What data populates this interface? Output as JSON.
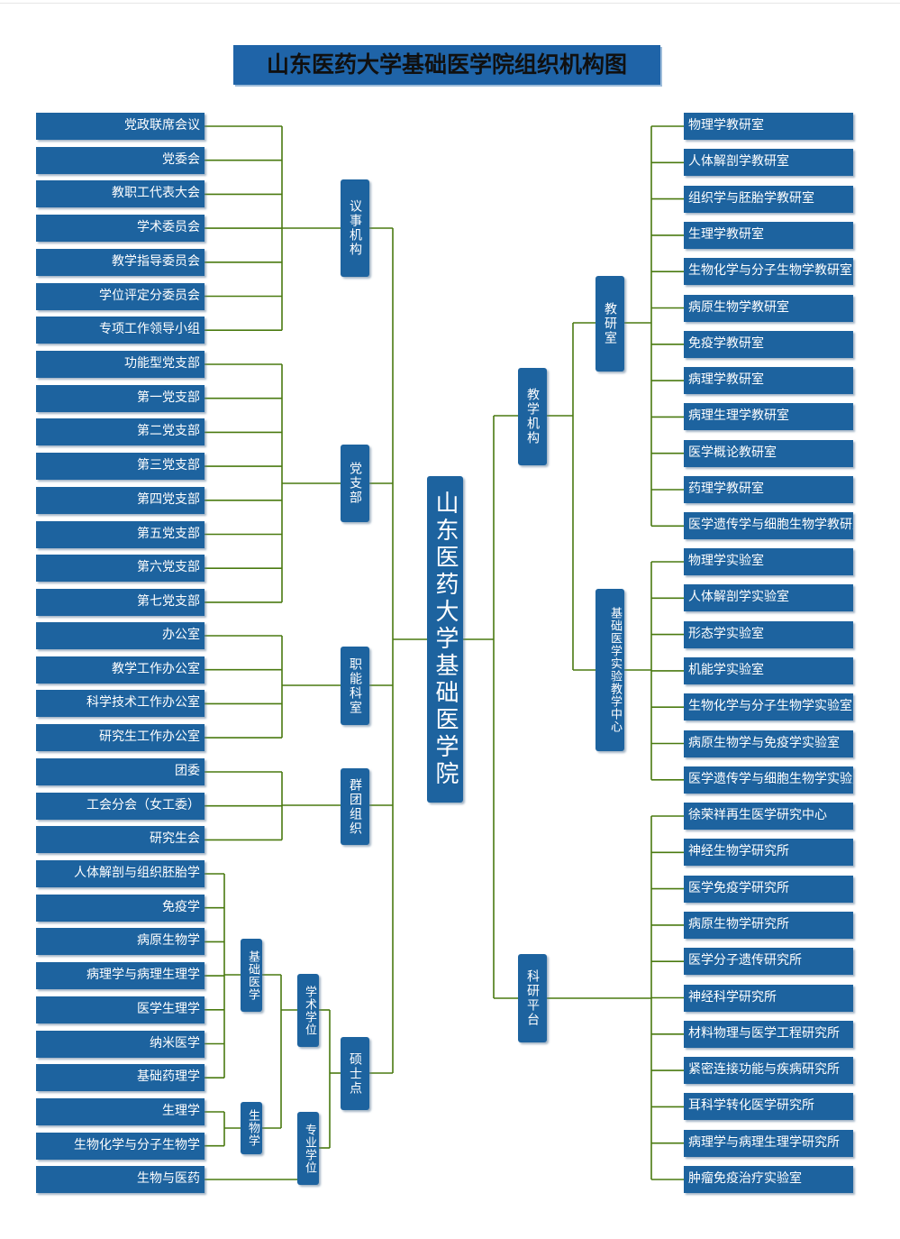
{
  "title": "山东医药大学基础医学院组织机构图",
  "colors": {
    "box": "#1d639f",
    "title_bg": "#1f64a8",
    "line": "#4a7a10",
    "text": "#ffffff"
  },
  "center": "山东医药大学基础医学院",
  "left": {
    "yishi": {
      "label": "议事机构",
      "items": [
        "党政联席会议",
        "党委会",
        "教职工代表大会",
        "学术委员会",
        "教学指导委员会",
        "学位评定分委员会",
        "专项工作领导小组"
      ]
    },
    "dangzhibu": {
      "label": "党支部",
      "items": [
        "功能型党支部",
        "第一党支部",
        "第二党支部",
        "第三党支部",
        "第四党支部",
        "第五党支部",
        "第六党支部",
        "第七党支部"
      ]
    },
    "zhineng": {
      "label": "职能科室",
      "items": [
        "办公室",
        "教学工作办公室",
        "科学技术工作办公室",
        "研究生工作办公室"
      ]
    },
    "quntuan": {
      "label": "群团组织",
      "items": [
        "团委",
        "工会分会（女工委）",
        "研究生会"
      ]
    },
    "shuoshi": {
      "label": "硕士点",
      "xueshu": {
        "label": "学术学位",
        "jichu": {
          "label": "基础医学",
          "items": [
            "人体解剖与组织胚胎学",
            "免疫学",
            "病原生物学",
            "病理学与病理生理学",
            "医学生理学",
            "纳米医学",
            "基础药理学"
          ]
        },
        "shengwu": {
          "label": "生物学",
          "items": [
            "生理学",
            "生物化学与分子生物学"
          ]
        }
      },
      "zhuanye": {
        "label": "专业学位",
        "items": [
          "生物与医药"
        ]
      }
    }
  },
  "right": {
    "jiaoxue": {
      "label": "教学机构",
      "jiaoyanshi": {
        "label": "教研室",
        "items": [
          "物理学教研室",
          "人体解剖学教研室",
          "组织学与胚胎学教研室",
          "生理学教研室",
          "生物化学与分子生物学教研室",
          "病原生物学教研室",
          "免疫学教研室",
          "病理学教研室",
          "病理生理学教研室",
          "医学概论教研室",
          "药理学教研室",
          "医学遗传学与细胞生物学教研室"
        ]
      },
      "shiyan": {
        "label": "基础医学实验教学中心",
        "items": [
          "物理学实验室",
          "人体解剖学实验室",
          "形态学实验室",
          "机能学实验室",
          "生物化学与分子生物学实验室",
          "病原生物学与免疫学实验室",
          "医学遗传学与细胞生物学实验室"
        ]
      }
    },
    "keyan": {
      "label": "科研平台",
      "items": [
        "徐荣祥再生医学研究中心",
        "神经生物学研究所",
        "医学免疫学研究所",
        "病原生物学研究所",
        "医学分子遗传研究所",
        "神经科学研究所",
        "材料物理与医学工程研究所",
        "紧密连接功能与疾病研究所",
        "耳科学转化医学研究所",
        "病理学与病理生理学研究所",
        "肿瘤免疫治疗实验室"
      ]
    }
  }
}
